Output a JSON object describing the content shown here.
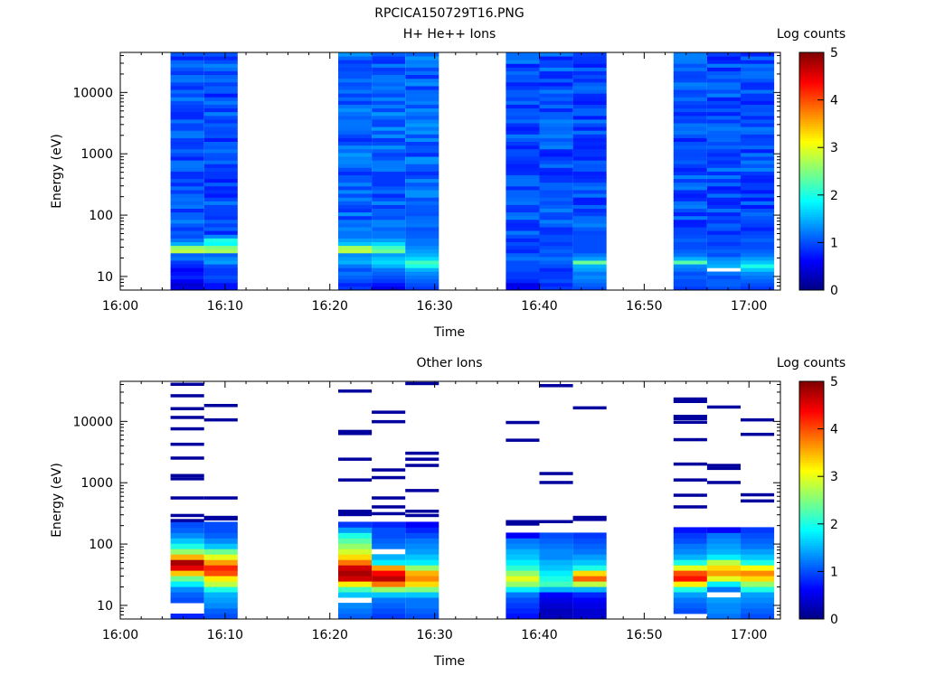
{
  "figure": {
    "title": "RPCICA150729T16.PNG"
  },
  "chart_data": [
    {
      "type": "heatmap",
      "title": "H+ He++ Ions",
      "xlabel": "Time",
      "ylabel": "Energy (eV)",
      "colorbar_label": "Log counts",
      "x_ticks": [
        "16:00",
        "16:10",
        "16:20",
        "16:30",
        "16:40",
        "16:50",
        "17:00"
      ],
      "y_ticks": [
        "10",
        "100",
        "1000",
        "10000"
      ],
      "colorbar_ticks": [
        "0",
        "1",
        "2",
        "3",
        "4",
        "5"
      ],
      "x_range_minutes": [
        0,
        63
      ],
      "y_range_eV": [
        6,
        45000
      ],
      "y_scale": "log",
      "z_range": [
        0,
        5
      ],
      "colormap": [
        "#00007f",
        "#0000ff",
        "#0080ff",
        "#00ffff",
        "#80ff80",
        "#ffff00",
        "#ff8000",
        "#ff0000",
        "#7f0000"
      ],
      "time_columns_minutes": [
        [
          4.8,
          8.0
        ],
        [
          8.0,
          11.2
        ],
        [
          20.8,
          24.0
        ],
        [
          24.0,
          27.2
        ],
        [
          27.2,
          30.4
        ],
        [
          36.8,
          40.0
        ],
        [
          40.0,
          43.2
        ],
        [
          43.2,
          46.4
        ],
        [
          52.8,
          56.0
        ],
        [
          56.0,
          59.2
        ],
        [
          59.2,
          62.4
        ]
      ],
      "profiles": [
        {
          "base": 1.0,
          "low": [
            0.5,
            0.4,
            0.6,
            0.8,
            0.7,
            0.6,
            0.8,
            0.9,
            1.2,
            1.1,
            2.8,
            2.6,
            1.5,
            1.2,
            1.0
          ]
        },
        {
          "base": 1.0,
          "low": [
            0.7,
            0.7,
            0.9,
            1.0,
            0.9,
            0.9,
            1.0,
            1.4,
            1.3,
            1.1,
            2.7,
            2.5,
            1.9,
            2.0,
            1.3
          ]
        },
        {
          "base": 1.1,
          "low": [
            0.9,
            0.8,
            1.0,
            1.1,
            1.2,
            1.0,
            1.2,
            1.5,
            1.4,
            1.3,
            2.8,
            2.7,
            1.6,
            1.4,
            1.2
          ]
        },
        {
          "base": 1.1,
          "low": [
            0.5,
            0.7,
            0.9,
            1.0,
            1.1,
            1.2,
            1.5,
            1.7,
            1.6,
            1.4,
            2.4,
            2.2,
            1.7,
            1.4,
            1.2
          ]
        },
        {
          "base": 1.1,
          "low": [
            0.9,
            1.0,
            1.1,
            1.2,
            1.3,
            1.5,
            2.0,
            2.2,
            1.7,
            1.5,
            1.4,
            1.3,
            1.2,
            1.2,
            1.1
          ]
        },
        {
          "base": 1.0,
          "low": [
            0.6,
            0.5,
            0.8,
            0.9,
            0.9,
            1.0,
            1.0,
            1.0,
            1.2,
            1.1,
            0.8,
            0.9,
            1.0,
            0.8,
            1.0
          ]
        },
        {
          "base": 1.0,
          "low": [
            0.9,
            0.8,
            1.0,
            0.9,
            0.9,
            0.8,
            1.0,
            1.1,
            1.2,
            1.0,
            1.1,
            1.0,
            0.9,
            1.0,
            1.0
          ]
        },
        {
          "base": 1.0,
          "low": [
            1.0,
            1.1,
            1.2,
            1.3,
            1.2,
            1.4,
            1.5,
            2.4,
            1.4,
            1.2,
            1.0,
            1.0,
            1.0,
            1.0,
            1.0
          ]
        },
        {
          "base": 1.0,
          "low": [
            0.9,
            1.0,
            1.0,
            1.1,
            1.0,
            1.2,
            1.3,
            2.3,
            1.5,
            1.2,
            1.1,
            1.0,
            1.0,
            1.1,
            1.0
          ]
        },
        {
          "base": 1.0,
          "low": [
            1.0,
            1.1,
            1.1,
            1.0,
            1.2,
            null,
            1.5,
            1.4,
            1.3,
            1.0,
            1.1,
            1.0,
            0.9,
            1.0,
            1.0
          ]
        },
        {
          "base": 1.0,
          "low": [
            0.9,
            1.0,
            1.1,
            1.2,
            1.3,
            1.6,
            2.0,
            1.6,
            1.4,
            1.2,
            1.1,
            1.0,
            1.0,
            1.1,
            1.0
          ]
        }
      ]
    },
    {
      "type": "heatmap",
      "title": "Other Ions",
      "xlabel": "Time",
      "ylabel": "Energy (eV)",
      "colorbar_label": "Log counts",
      "x_ticks": [
        "16:00",
        "16:10",
        "16:20",
        "16:30",
        "16:40",
        "16:50",
        "17:00"
      ],
      "y_ticks": [
        "10",
        "100",
        "1000",
        "10000"
      ],
      "colorbar_ticks": [
        "0",
        "1",
        "2",
        "3",
        "4",
        "5"
      ],
      "x_range_minutes": [
        0,
        63
      ],
      "y_range_eV": [
        6,
        45000
      ],
      "y_scale": "log",
      "z_range": [
        0,
        5
      ],
      "time_columns_minutes": [
        [
          4.8,
          8.0
        ],
        [
          8.0,
          11.2
        ],
        [
          20.8,
          24.0
        ],
        [
          24.0,
          27.2
        ],
        [
          27.2,
          30.4
        ],
        [
          36.8,
          40.0
        ],
        [
          40.0,
          43.2
        ],
        [
          43.2,
          46.4
        ],
        [
          52.8,
          56.0
        ],
        [
          56.0,
          59.2
        ],
        [
          59.2,
          62.4
        ]
      ],
      "sparse_lines_eV": [
        [
          40000,
          26000,
          16000,
          11500,
          7500,
          4200,
          2500,
          1300,
          1150,
          560,
          290,
          240
        ],
        [
          18000,
          10500,
          560,
          270,
          255
        ],
        [
          31000,
          6800,
          6300,
          2400,
          1100,
          340,
          320,
          300
        ],
        [
          14000,
          9800,
          1600,
          1200,
          560,
          400,
          310
        ],
        [
          41000,
          3000,
          2400,
          1900,
          740,
          340,
          290
        ],
        [
          9500,
          4900,
          230,
          210
        ],
        [
          38000,
          1400,
          1000,
          230
        ],
        [
          16500,
          270,
          250
        ],
        [
          23000,
          21000,
          12000,
          11000,
          9600,
          5000,
          2000,
          1100,
          620,
          400
        ],
        [
          17000,
          1900,
          1700,
          1000
        ],
        [
          10500,
          6100,
          630,
          500
        ]
      ],
      "dense_profiles": [
        [
          0.8,
          null,
          null,
          1.0,
          1.1,
          1.3,
          1.8,
          2.4,
          3.4,
          4.5,
          4.8,
          3.5,
          2.6,
          2.0,
          1.6,
          1.3,
          1.1,
          1.0
        ],
        [
          1.0,
          1.1,
          1.3,
          1.4,
          1.5,
          2.0,
          2.8,
          3.2,
          4.0,
          4.2,
          3.6,
          3.0,
          2.4,
          1.6,
          1.3,
          1.1,
          1.0,
          1.0
        ],
        [
          1.1,
          1.2,
          1.3,
          null,
          1.6,
          2.2,
          3.2,
          4.6,
          4.8,
          4.6,
          3.8,
          3.3,
          2.9,
          2.6,
          2.3,
          2.0,
          1.4,
          0.9
        ],
        [
          0.9,
          1.0,
          1.1,
          1.2,
          1.6,
          2.6,
          3.8,
          4.7,
          4.4,
          3.6,
          1.8,
          1.5,
          null,
          1.2,
          1.1,
          1.0,
          1.0,
          0.8
        ],
        [
          1.0,
          1.1,
          1.2,
          1.2,
          1.6,
          2.5,
          3.3,
          3.7,
          3.5,
          2.6,
          1.8,
          1.6,
          1.4,
          1.3,
          1.2,
          1.0,
          0.8,
          0.6
        ],
        [
          0.7,
          0.8,
          0.9,
          1.0,
          1.2,
          1.8,
          2.6,
          3.0,
          2.6,
          2.1,
          1.8,
          1.6,
          1.5,
          1.3,
          1.2,
          0.6,
          null,
          null
        ],
        [
          0.3,
          0.3,
          0.4,
          0.5,
          0.6,
          1.5,
          2.2,
          2.0,
          1.8,
          1.6,
          1.5,
          1.3,
          1.3,
          1.2,
          1.1,
          1.0,
          null,
          null
        ],
        [
          0.4,
          0.4,
          0.5,
          0.6,
          0.8,
          1.5,
          2.8,
          3.9,
          3.3,
          2.0,
          1.6,
          1.4,
          1.2,
          1.1,
          1.0,
          0.9,
          null,
          null
        ],
        [
          null,
          1.0,
          1.1,
          1.2,
          1.4,
          2.0,
          3.2,
          4.3,
          4.0,
          3.0,
          2.0,
          1.5,
          1.3,
          1.2,
          1.0,
          0.9,
          0.7,
          null
        ],
        [
          1.2,
          1.3,
          1.3,
          1.4,
          null,
          1.2,
          1.8,
          3.0,
          3.6,
          3.3,
          2.8,
          1.8,
          1.5,
          1.4,
          1.3,
          1.2,
          0.6,
          null
        ],
        [
          1.0,
          1.1,
          1.2,
          1.3,
          1.4,
          2.0,
          2.6,
          3.3,
          3.7,
          3.1,
          2.0,
          1.6,
          1.4,
          1.2,
          1.1,
          1.0,
          0.9,
          null
        ]
      ]
    }
  ]
}
